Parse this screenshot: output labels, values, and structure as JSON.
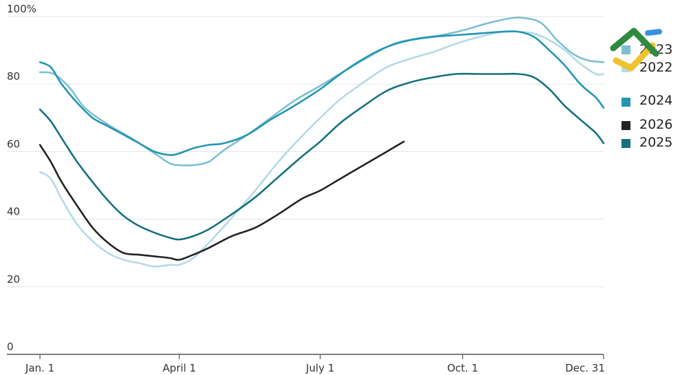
{
  "chart_data": {
    "type": "line",
    "title": "",
    "xlabel": "",
    "ylabel": "",
    "ylim": [
      0,
      100
    ],
    "xlim": [
      1,
      365
    ],
    "grid": true,
    "legend_position": "right",
    "y_ticks": [
      {
        "value": 100,
        "label": "100%"
      },
      {
        "value": 80,
        "label": "80"
      },
      {
        "value": 60,
        "label": "60"
      },
      {
        "value": 40,
        "label": "40"
      },
      {
        "value": 20,
        "label": "20"
      },
      {
        "value": 0,
        "label": "0"
      }
    ],
    "x_ticks": [
      {
        "value": 1,
        "label": "Jan. 1"
      },
      {
        "value": 91,
        "label": "April 1"
      },
      {
        "value": 182,
        "label": "July 1"
      },
      {
        "value": 274,
        "label": "Oct. 1"
      },
      {
        "value": 365,
        "label": "Dec. 31"
      }
    ],
    "series": [
      {
        "name": "2023",
        "color": "#7cbfd0",
        "x": [
          1,
          10,
          20,
          30,
          45,
          60,
          75,
          85,
          91,
          100,
          110,
          120,
          135,
          150,
          165,
          182,
          200,
          215,
          230,
          245,
          260,
          275,
          290,
          305,
          315,
          325,
          335,
          345,
          355,
          365
        ],
        "values": [
          83.5,
          83,
          79,
          73,
          68,
          64,
          59.5,
          56.5,
          56,
          56,
          57,
          60.5,
          65,
          70,
          75,
          79.5,
          84.5,
          88.5,
          92,
          93.5,
          94.5,
          96,
          98,
          99.5,
          99.5,
          98,
          93,
          89,
          87,
          86.5
        ]
      },
      {
        "name": "2022",
        "color": "#b4dae6",
        "x": [
          1,
          8,
          15,
          25,
          35,
          45,
          55,
          65,
          75,
          85,
          91,
          100,
          110,
          125,
          140,
          155,
          170,
          182,
          195,
          210,
          225,
          240,
          255,
          270,
          285,
          300,
          310,
          320,
          330,
          340,
          350,
          360,
          365
        ],
        "values": [
          54,
          52,
          46,
          38.5,
          33.5,
          30,
          28,
          27,
          26,
          26.5,
          26.5,
          28.5,
          33,
          40.5,
          48.5,
          57,
          64.5,
          70,
          75.5,
          80.5,
          85,
          87.5,
          89.5,
          92,
          94,
          95.5,
          95.5,
          95,
          93,
          90,
          86,
          83,
          83
        ]
      },
      {
        "name": "2024",
        "color": "#2196b3",
        "x": [
          1,
          8,
          15,
          25,
          35,
          45,
          55,
          65,
          75,
          85,
          91,
          100,
          110,
          120,
          135,
          150,
          165,
          182,
          195,
          210,
          225,
          240,
          255,
          270,
          285,
          300,
          310,
          320,
          330,
          340,
          350,
          360,
          365
        ],
        "values": [
          86.5,
          85,
          80,
          74.5,
          70,
          67.5,
          65,
          62.5,
          60,
          59,
          59.5,
          61,
          62,
          62.5,
          65,
          69.5,
          73.5,
          78.5,
          83,
          87.5,
          91,
          93,
          94,
          94.5,
          95,
          95.5,
          95.5,
          94,
          90,
          85.5,
          80,
          76,
          73
        ]
      },
      {
        "name": "2026",
        "color": "#222222",
        "x": [
          1,
          8,
          15,
          25,
          35,
          45,
          55,
          65,
          75,
          85,
          91,
          100,
          110,
          125,
          140,
          155,
          170,
          182,
          195,
          210,
          225,
          236
        ],
        "values": [
          62,
          57,
          51,
          44,
          37.5,
          33,
          30,
          29.5,
          29,
          28.5,
          28,
          29.5,
          31.5,
          35,
          37.5,
          41.5,
          46,
          48.5,
          52,
          56,
          60,
          63
        ]
      },
      {
        "name": "2025",
        "color": "#14707f",
        "x": [
          1,
          8,
          15,
          25,
          35,
          45,
          55,
          65,
          75,
          85,
          91,
          100,
          110,
          125,
          140,
          155,
          170,
          182,
          195,
          210,
          225,
          240,
          255,
          270,
          285,
          300,
          310,
          320,
          330,
          340,
          350,
          360,
          365
        ],
        "values": [
          72.5,
          69,
          64,
          57,
          51,
          45.5,
          41,
          38,
          36,
          34.5,
          34,
          35,
          37,
          41.5,
          46.5,
          52.5,
          58.5,
          63,
          68.5,
          73.5,
          78,
          80.5,
          82,
          83,
          83,
          83,
          83,
          82,
          78.5,
          73.5,
          69.5,
          65.5,
          62.5
        ]
      }
    ]
  },
  "legend": [
    {
      "label": "2023",
      "color": "#7cbfd0"
    },
    {
      "label": "2022",
      "color": "#b4dae6"
    },
    {
      "label": "2024",
      "color": "#2196b3"
    },
    {
      "label": "2026",
      "color": "#222222"
    },
    {
      "label": "2025",
      "color": "#14707f"
    }
  ],
  "colors": {
    "grid": "#e3e3e3",
    "axis": "#555555",
    "logo_green": "#2f8a3e",
    "logo_blue": "#3b8fe0",
    "logo_yellow": "#f0c22e"
  }
}
